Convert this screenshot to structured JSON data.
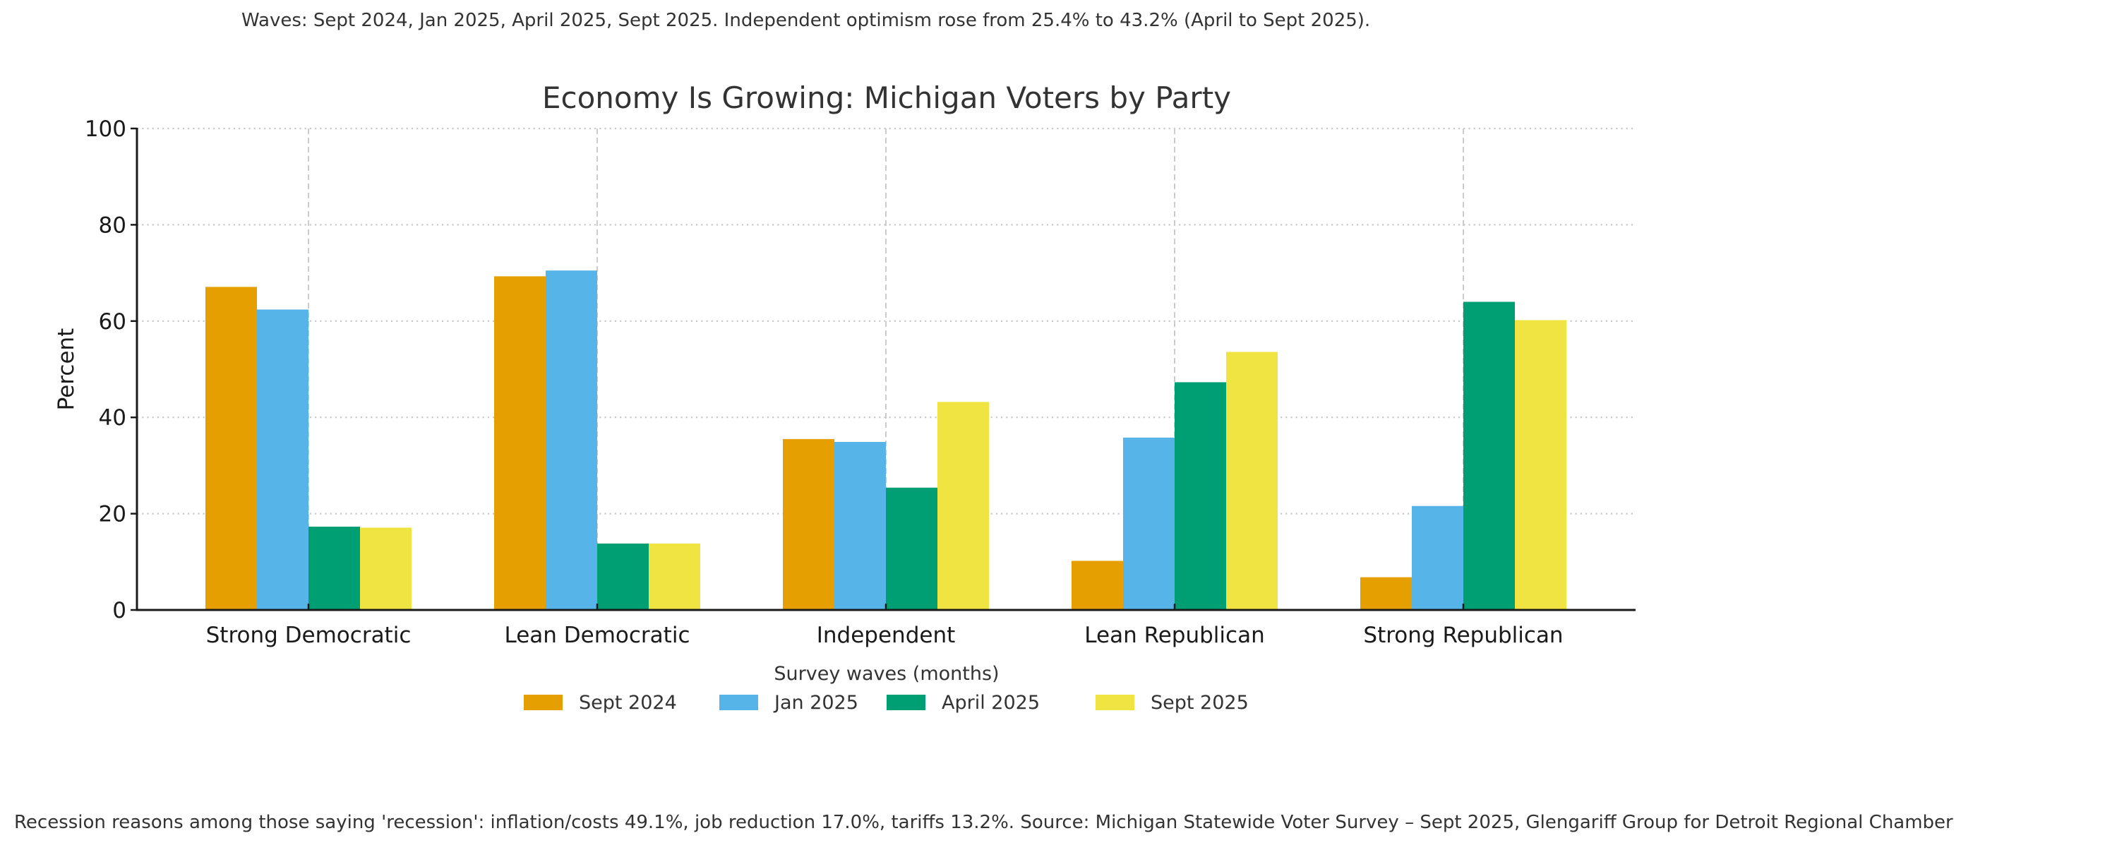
{
  "subtitle": "Waves: Sept 2024, Jan 2025, April 2025, Sept 2025. Independent optimism rose from 25.4% to 43.2% (April to Sept 2025).",
  "footer": "Recession reasons among those saying 'recession': inflation/costs 49.1%, job reduction 17.0%, tariffs 13.2%.  Source: Michigan Statewide Voter Survey – Sept 2025, Glengariff Group for Detroit Regional Chamber",
  "chart_data": {
    "type": "bar",
    "title": "Economy Is Growing: Michigan Voters by Party",
    "xlabel": "",
    "ylabel": "Percent",
    "ylim": [
      0,
      100
    ],
    "yticks": [
      0,
      20,
      40,
      60,
      80,
      100
    ],
    "grid": true,
    "legend_title": "Survey waves (months)",
    "legend_position": "bottom-center",
    "categories": [
      "Strong Democratic",
      "Lean Democratic",
      "Independent",
      "Lean Republican",
      "Strong Republican"
    ],
    "series": [
      {
        "name": "Sept 2024",
        "color": "#E69F00",
        "values": [
          67.1,
          69.3,
          35.5,
          10.2,
          6.8
        ]
      },
      {
        "name": "Jan 2025",
        "color": "#56B4E9",
        "values": [
          62.4,
          70.5,
          34.9,
          35.8,
          21.6
        ]
      },
      {
        "name": "April 2025",
        "color": "#009E73",
        "values": [
          17.3,
          13.8,
          25.4,
          47.3,
          64.0
        ]
      },
      {
        "name": "Sept 2025",
        "color": "#F0E442",
        "values": [
          17.1,
          13.8,
          43.2,
          53.6,
          60.2
        ]
      }
    ]
  }
}
